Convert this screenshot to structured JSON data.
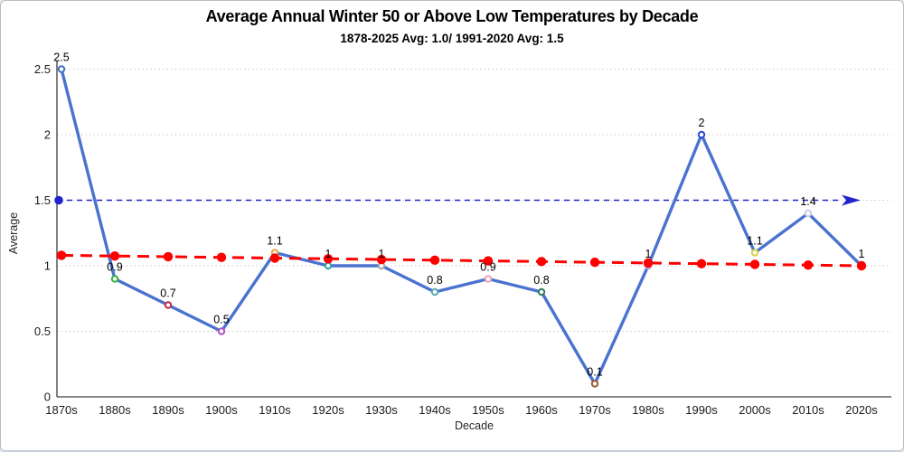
{
  "frame": {
    "background": "#ffffff",
    "border_color": "#bdbdbd"
  },
  "chart_data": {
    "type": "line",
    "title": "Average Annual Winter 50 or Above Low Temperatures by Decade",
    "subtitle": "1878-2025 Avg: 1.0/ 1991-2020 Avg: 1.5",
    "xlabel": "Decade",
    "ylabel": "Average",
    "categories": [
      "1870s",
      "1880s",
      "1890s",
      "1900s",
      "1910s",
      "1920s",
      "1930s",
      "1940s",
      "1950s",
      "1960s",
      "1970s",
      "1980s",
      "1990s",
      "2000s",
      "2010s",
      "2020s"
    ],
    "series": [
      {
        "name": "Average winter 50-or-above low by decade",
        "values": [
          2.5,
          0.9,
          0.7,
          0.5,
          1.1,
          1,
          1,
          0.8,
          0.9,
          0.8,
          0.1,
          1,
          2,
          1.1,
          1.4,
          1
        ],
        "labels": [
          "2.5",
          "0.9",
          "0.7",
          "0.5",
          "1.1",
          "1",
          "1",
          "0.8",
          "0.9",
          "0.8",
          "0.1",
          "1",
          "2",
          "1.1",
          "1.4",
          "1"
        ],
        "color": "#4a72cf",
        "point_colors": [
          "#4472c4",
          "#3cb044",
          "#c02b4b",
          "#b14fc5",
          "#e8a33d",
          "#31a2a2",
          "#a6a6a6",
          "#5aabb0",
          "#eaa6ba",
          "#2e7d5f",
          "#9c5b2e",
          "#b5a1dd",
          "#2b4bd0",
          "#d8d04a",
          "#cec9ea",
          "#d0cece"
        ]
      }
    ],
    "reference_lines": [
      {
        "name": "1991-2020 average line",
        "value": 1.5,
        "color": "#2323cc",
        "style": "dashed",
        "arrow": true
      },
      {
        "name": "1878-2025 trend line",
        "start_value": 1.08,
        "end_value": 1.0,
        "color": "#fe0000",
        "style": "dashed-with-dots"
      }
    ],
    "y_ticks": [
      "0",
      "0.5",
      "1",
      "1.5",
      "2",
      "2.5"
    ],
    "y_tick_values": [
      0,
      0.5,
      1,
      1.5,
      2,
      2.5
    ],
    "ylim": [
      0,
      2.5
    ],
    "grid": "horizontal-dotted",
    "grid_color": "#c9c9c9",
    "axis_color": "#404040",
    "legend": "none"
  }
}
